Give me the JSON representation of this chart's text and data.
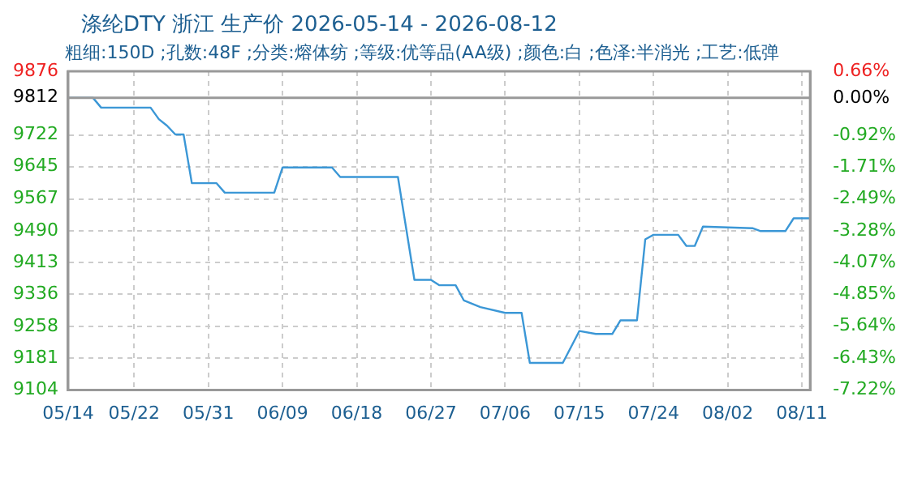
{
  "chart_data": {
    "type": "line",
    "title": "涤纶DTY 浙江 生产价 2026-05-14 - 2026-08-12",
    "subtitle": "粗细:150D ;孔数:48F ;分类:熔体纺 ;等级:优等品(AA级) ;颜色:白 ;色泽:半消光 ;工艺:低弹",
    "x": [
      "2026-05-14",
      "2026-05-17",
      "2026-05-18",
      "2026-05-24",
      "2026-05-25",
      "2026-05-26",
      "2026-05-27",
      "2026-05-28",
      "2026-05-29",
      "2026-06-01",
      "2026-06-02",
      "2026-06-08",
      "2026-06-09",
      "2026-06-15",
      "2026-06-16",
      "2026-06-23",
      "2026-06-25",
      "2026-06-27",
      "2026-06-28",
      "2026-06-30",
      "2026-07-01",
      "2026-07-03",
      "2026-07-06",
      "2026-07-08",
      "2026-07-09",
      "2026-07-13",
      "2026-07-15",
      "2026-07-17",
      "2026-07-19",
      "2026-07-20",
      "2026-07-22",
      "2026-07-23",
      "2026-07-24",
      "2026-07-27",
      "2026-07-28",
      "2026-07-29",
      "2026-07-30",
      "2026-08-05",
      "2026-08-06",
      "2026-08-09",
      "2026-08-10",
      "2026-08-12"
    ],
    "series": [
      {
        "color": "#3b97d6",
        "values": [
          9812,
          9812,
          9788,
          9788,
          9760,
          9744,
          9723,
          9723,
          9605,
          9605,
          9582,
          9582,
          9643,
          9643,
          9620,
          9620,
          9371,
          9371,
          9358,
          9358,
          9321,
          9305,
          9291,
          9291,
          9170,
          9170,
          9247,
          9240,
          9240,
          9273,
          9273,
          9469,
          9480,
          9480,
          9453,
          9453,
          9500,
          9496,
          9489,
          9489,
          9520,
          9520
        ]
      }
    ],
    "xlim": [
      "2026-05-14",
      "2026-08-12"
    ],
    "xticks": [
      {
        "value": "2026-05-14",
        "label": "05/14"
      },
      {
        "value": "2026-05-22",
        "label": "05/22"
      },
      {
        "value": "2026-05-31",
        "label": "05/31"
      },
      {
        "value": "2026-06-09",
        "label": "06/09"
      },
      {
        "value": "2026-06-18",
        "label": "06/18"
      },
      {
        "value": "2026-06-27",
        "label": "06/27"
      },
      {
        "value": "2026-07-06",
        "label": "07/06"
      },
      {
        "value": "2026-07-15",
        "label": "07/15"
      },
      {
        "value": "2026-07-24",
        "label": "07/24"
      },
      {
        "value": "2026-08-02",
        "label": "08/02"
      },
      {
        "value": "2026-08-11",
        "label": "08/11"
      }
    ],
    "ylim": [
      9104,
      9876
    ],
    "yticks": [
      9104,
      9181,
      9258,
      9336,
      9413,
      9490,
      9567,
      9645,
      9722,
      9812,
      9876
    ],
    "y2lim": [
      -7.22,
      0.66
    ],
    "y2ticks": [
      {
        "value": -7.22,
        "label": "-7.22%"
      },
      {
        "value": -6.43,
        "label": "-6.43%"
      },
      {
        "value": -5.64,
        "label": "-5.64%"
      },
      {
        "value": -4.85,
        "label": "-4.85%"
      },
      {
        "value": -4.07,
        "label": "-4.07%"
      },
      {
        "value": -3.28,
        "label": "-3.28%"
      },
      {
        "value": -2.49,
        "label": "-2.49%"
      },
      {
        "value": -1.71,
        "label": "-1.71%"
      },
      {
        "value": -0.92,
        "label": "-0.92%"
      },
      {
        "value": 0,
        "label": "0.00%"
      },
      {
        "value": 0.66,
        "label": "0.66%"
      }
    ],
    "ref_lines": [
      {
        "axis": "y",
        "value": 9812,
        "color": "#999999"
      }
    ],
    "grid": true,
    "legend": false,
    "marker": "none",
    "line_style": "solid"
  }
}
